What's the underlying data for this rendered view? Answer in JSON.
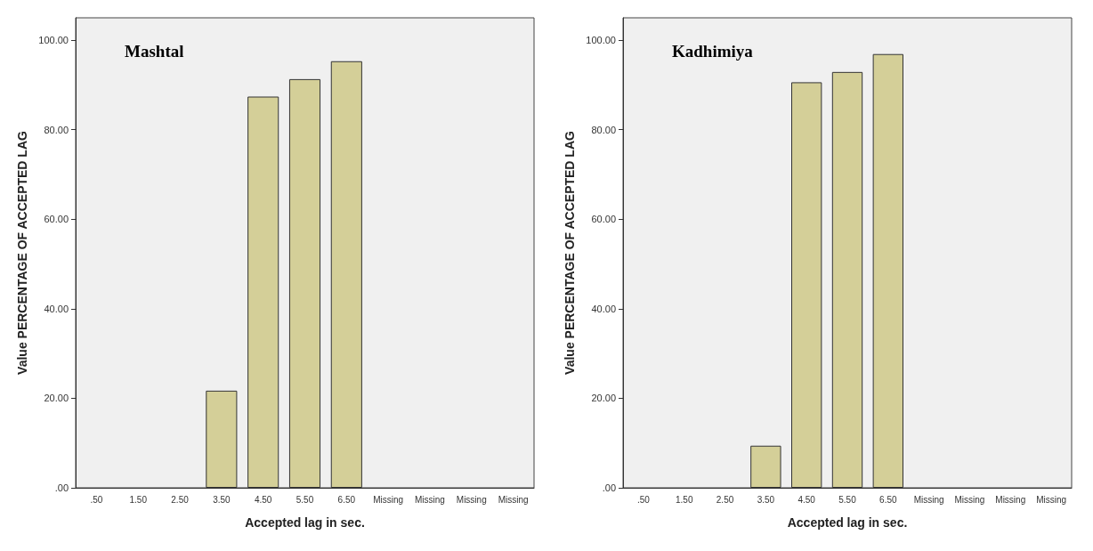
{
  "chart_data": [
    {
      "type": "bar",
      "title": "Mashtal",
      "xlabel": "Accepted lag in sec.",
      "ylabel": "Value PERCENTAGE OF ACCEPTED LAG",
      "categories": [
        ".50",
        "1.50",
        "2.50",
        "3.50",
        "4.50",
        "5.50",
        "6.50",
        "Missing",
        "Missing",
        "Missing",
        "Missing"
      ],
      "values": [
        null,
        null,
        null,
        21.7,
        87.4,
        91.3,
        95.3,
        null,
        null,
        null,
        null
      ],
      "color": "#d4cf98",
      "ylim": [
        0,
        105
      ],
      "yticks": [
        {
          "value": 0,
          "label": ".00"
        },
        {
          "value": 20,
          "label": "20.00"
        },
        {
          "value": 40,
          "label": "40.00"
        },
        {
          "value": 60,
          "label": "60.00"
        },
        {
          "value": 80,
          "label": "80.00"
        },
        {
          "value": 100,
          "label": "100.00"
        }
      ],
      "grid": false
    },
    {
      "type": "bar",
      "title": "Kadhimiya",
      "xlabel": "Accepted lag in sec.",
      "ylabel": "Value PERCENTAGE OF ACCEPTED LAG",
      "categories": [
        ".50",
        "1.50",
        "2.50",
        "3.50",
        "4.50",
        "5.50",
        "6.50",
        "Missing",
        "Missing",
        "Missing",
        "Missing"
      ],
      "values": [
        null,
        null,
        null,
        9.4,
        90.6,
        92.9,
        96.9,
        null,
        null,
        null,
        null
      ],
      "color": "#d4cf98",
      "ylim": [
        0,
        105
      ],
      "yticks": [
        {
          "value": 0,
          "label": ".00"
        },
        {
          "value": 20,
          "label": "20.00"
        },
        {
          "value": 40,
          "label": "40.00"
        },
        {
          "value": 60,
          "label": "60.00"
        },
        {
          "value": 80,
          "label": "80.00"
        },
        {
          "value": 100,
          "label": "100.00"
        }
      ],
      "grid": false
    }
  ]
}
